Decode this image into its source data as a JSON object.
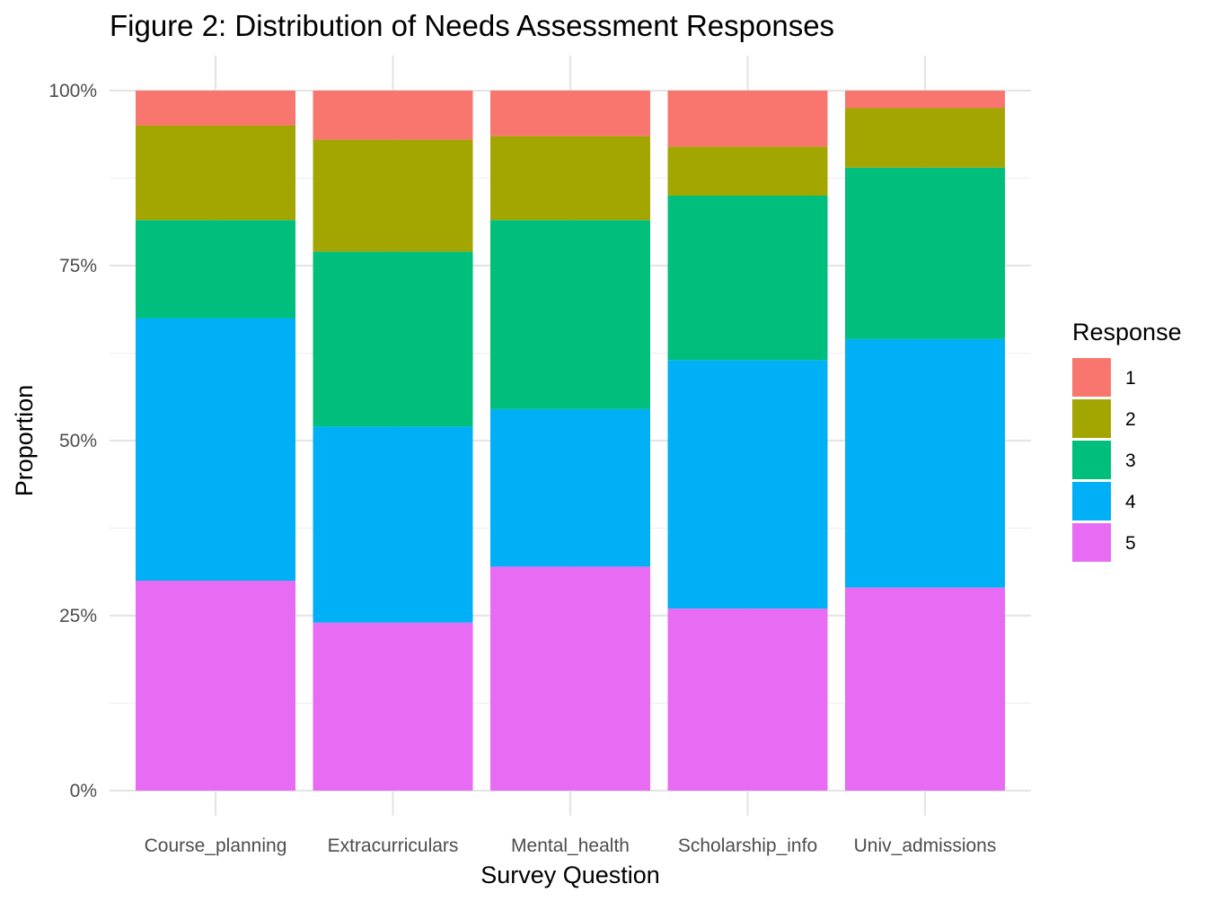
{
  "chart_data": {
    "type": "bar",
    "stacked": true,
    "title": "Figure 2: Distribution of Needs Assessment Responses",
    "xlabel": "Survey Question",
    "ylabel": "Proportion",
    "ylim": [
      0,
      1
    ],
    "y_ticks": [
      "0%",
      "25%",
      "50%",
      "75%",
      "100%"
    ],
    "grid": true,
    "legend_position": "right",
    "legend_title": "Response",
    "categories": [
      "Course_planning",
      "Extracurriculars",
      "Mental_health",
      "Scholarship_info",
      "Univ_admissions"
    ],
    "series": [
      {
        "name": "1",
        "color": "#F8766D",
        "values": [
          0.05,
          0.07,
          0.065,
          0.08,
          0.025
        ]
      },
      {
        "name": "2",
        "color": "#A3A500",
        "values": [
          0.135,
          0.16,
          0.12,
          0.07,
          0.085
        ]
      },
      {
        "name": "3",
        "color": "#00BF7D",
        "values": [
          0.14,
          0.25,
          0.27,
          0.235,
          0.245
        ]
      },
      {
        "name": "4",
        "color": "#00B0F6",
        "values": [
          0.375,
          0.28,
          0.225,
          0.355,
          0.355
        ]
      },
      {
        "name": "5",
        "color": "#E76BF3",
        "values": [
          0.3,
          0.24,
          0.32,
          0.26,
          0.29
        ]
      }
    ]
  }
}
